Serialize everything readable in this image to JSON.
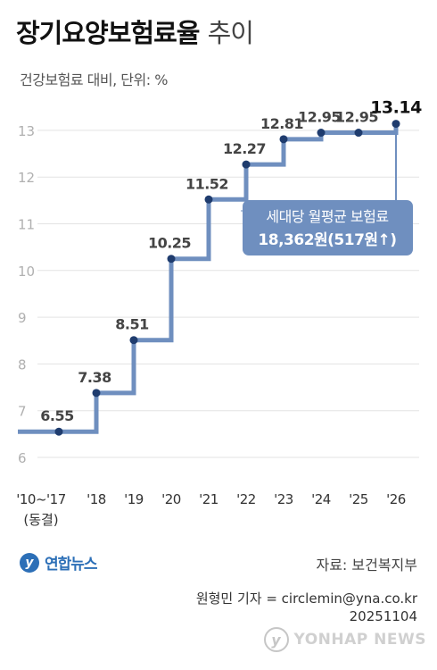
{
  "title_main": "장기요양보험료율",
  "title_light": "추이",
  "subtitle": "건강보험료 대비, 단위: %",
  "callout": {
    "line1": "세대당 월평균 보험료",
    "line2": "18,362원(517원↑)"
  },
  "logo_text": "연합뉴스",
  "source": "자료: 보건복지부",
  "credit_line1": "원형민 기자 = circlemin@yna.co.kr",
  "credit_line2": "20251104",
  "watermark": "YONHAP NEWS",
  "colors": {
    "line": "#6f8fbf",
    "point": "#1f3c6e",
    "grid": "#e3e3e3",
    "callout_bg": "#6f8fbf",
    "callout_text": "#ffffff"
  },
  "chart_data": {
    "type": "line",
    "step": true,
    "categories": [
      "'10~'17",
      "'18",
      "'19",
      "'20",
      "'21",
      "'22",
      "'23",
      "'24",
      "'25",
      "'26"
    ],
    "category_sub": [
      "(동결)",
      "",
      "",
      "",
      "",
      "",
      "",
      "",
      "",
      ""
    ],
    "values": [
      6.55,
      7.38,
      8.51,
      10.25,
      11.52,
      12.27,
      12.81,
      12.95,
      12.95,
      13.14
    ],
    "value_labels": [
      "6.55",
      "7.38",
      "8.51",
      "10.25",
      "11.52",
      "12.27",
      "12.81",
      "12.95",
      "12.95",
      "13.14"
    ],
    "yticks": [
      6,
      7,
      8,
      9,
      10,
      11,
      12,
      13
    ],
    "ylim": [
      5.8,
      13.2
    ],
    "grid": true,
    "highlight_last": true
  }
}
